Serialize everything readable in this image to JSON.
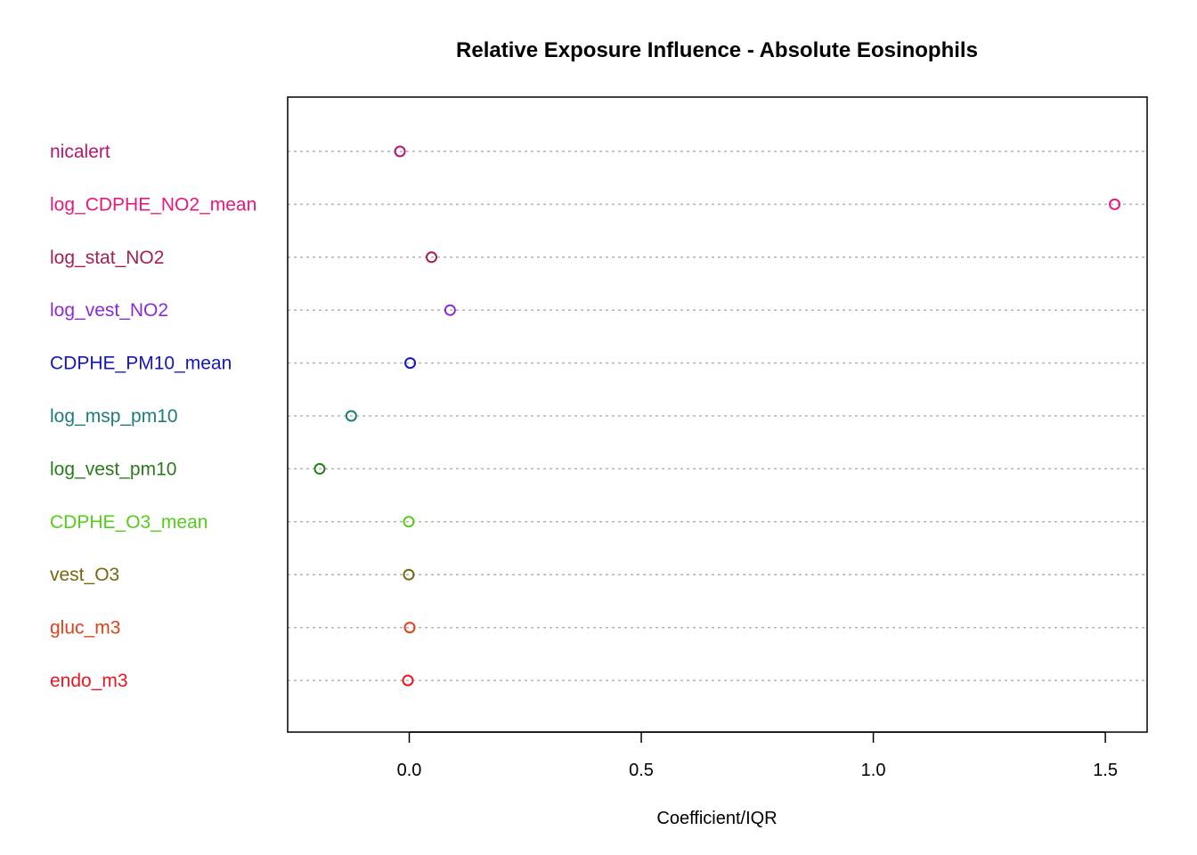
{
  "chart_data": {
    "type": "scatter",
    "title": "Relative Exposure Influence - Absolute Eosinophils",
    "xlabel": "Coefficient/IQR",
    "ylabel": "",
    "xlim": [
      -0.262,
      1.59
    ],
    "x_ticks": [
      0.0,
      0.5,
      1.0,
      1.5
    ],
    "x_tick_labels": [
      "0.0",
      "0.5",
      "1.0",
      "1.5"
    ],
    "grid": "horizontal dotted lines at each category",
    "legend": "none",
    "categories": [
      "nicalert",
      "log_CDPHE_NO2_mean",
      "log_stat_NO2",
      "log_vest_NO2",
      "CDPHE_PM10_mean",
      "log_msp_pm10",
      "log_vest_pm10",
      "CDPHE_O3_mean",
      "vest_O3",
      "gluc_m3",
      "endo_m3"
    ],
    "values": [
      -0.02,
      1.52,
      0.048,
      0.088,
      0.002,
      -0.125,
      -0.193,
      -0.001,
      -0.001,
      0.001,
      -0.003
    ],
    "colors": [
      "#B5166E",
      "#E8197A",
      "#A51F55",
      "#8A2BD8",
      "#1515C0",
      "#1E7B7B",
      "#2B7A1E",
      "#55CC1A",
      "#7A6510",
      "#E0401A",
      "#EE1520"
    ]
  }
}
